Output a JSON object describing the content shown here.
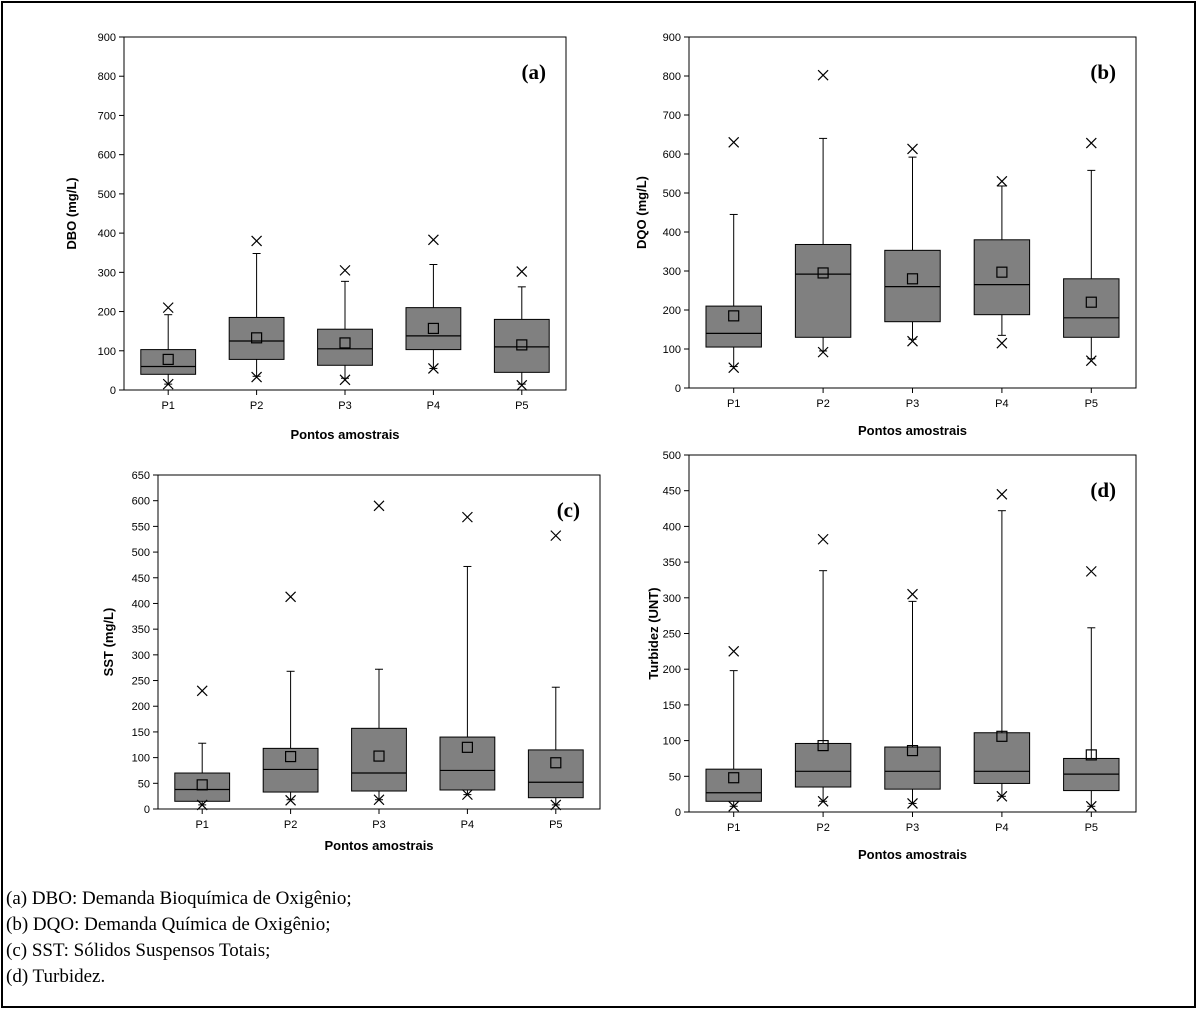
{
  "chart_data": [
    {
      "type": "boxplot",
      "panel_label": "(a)",
      "xlabel": "Pontos amostrais",
      "ylabel": "DBO (mg/L)",
      "ylim": [
        0,
        900
      ],
      "yticks": [
        0,
        100,
        200,
        300,
        400,
        500,
        600,
        700,
        800,
        900
      ],
      "categories": [
        "P1",
        "P2",
        "P3",
        "P4",
        "P5"
      ],
      "boxes": [
        {
          "whisker_low": 15,
          "q1": 40,
          "median": 60,
          "q3": 103,
          "whisker_high": 192,
          "mean": 78,
          "min": 15,
          "max": 210
        },
        {
          "whisker_low": 35,
          "q1": 78,
          "median": 125,
          "q3": 185,
          "whisker_high": 348,
          "mean": 133,
          "min": 33,
          "max": 380
        },
        {
          "whisker_low": 30,
          "q1": 63,
          "median": 105,
          "q3": 155,
          "whisker_high": 277,
          "mean": 120,
          "min": 26,
          "max": 305
        },
        {
          "whisker_low": 55,
          "q1": 103,
          "median": 138,
          "q3": 210,
          "whisker_high": 320,
          "mean": 157,
          "min": 55,
          "max": 383
        },
        {
          "whisker_low": 15,
          "q1": 45,
          "median": 110,
          "q3": 180,
          "whisker_high": 263,
          "mean": 115,
          "min": 12,
          "max": 302
        }
      ]
    },
    {
      "type": "boxplot",
      "panel_label": "(b)",
      "xlabel": "Pontos amostrais",
      "ylabel": "DQO (mg/L)",
      "ylim": [
        0,
        900
      ],
      "yticks": [
        0,
        100,
        200,
        300,
        400,
        500,
        600,
        700,
        800,
        900
      ],
      "categories": [
        "P1",
        "P2",
        "P3",
        "P4",
        "P5"
      ],
      "boxes": [
        {
          "whisker_low": 55,
          "q1": 105,
          "median": 140,
          "q3": 210,
          "whisker_high": 445,
          "mean": 185,
          "min": 52,
          "max": 630
        },
        {
          "whisker_low": 95,
          "q1": 130,
          "median": 292,
          "q3": 368,
          "whisker_high": 640,
          "mean": 295,
          "min": 92,
          "max": 802
        },
        {
          "whisker_low": 125,
          "q1": 170,
          "median": 260,
          "q3": 353,
          "whisker_high": 592,
          "mean": 280,
          "min": 120,
          "max": 613
        },
        {
          "whisker_low": 135,
          "q1": 188,
          "median": 265,
          "q3": 380,
          "whisker_high": 518,
          "mean": 297,
          "min": 115,
          "max": 530
        },
        {
          "whisker_low": 75,
          "q1": 130,
          "median": 180,
          "q3": 280,
          "whisker_high": 558,
          "mean": 220,
          "min": 70,
          "max": 628
        }
      ]
    },
    {
      "type": "boxplot",
      "panel_label": "(c)",
      "xlabel": "Pontos amostrais",
      "ylabel": "SST (mg/L)",
      "ylim": [
        0,
        650
      ],
      "yticks": [
        0,
        50,
        100,
        150,
        200,
        250,
        300,
        350,
        400,
        450,
        500,
        550,
        600,
        650
      ],
      "categories": [
        "P1",
        "P2",
        "P3",
        "P4",
        "P5"
      ],
      "boxes": [
        {
          "whisker_low": 8,
          "q1": 15,
          "median": 38,
          "q3": 70,
          "whisker_high": 128,
          "mean": 47,
          "min": 8,
          "max": 230
        },
        {
          "whisker_low": 18,
          "q1": 33,
          "median": 77,
          "q3": 118,
          "whisker_high": 268,
          "mean": 102,
          "min": 17,
          "max": 413
        },
        {
          "whisker_low": 18,
          "q1": 35,
          "median": 70,
          "q3": 157,
          "whisker_high": 272,
          "mean": 103,
          "min": 18,
          "max": 590
        },
        {
          "whisker_low": 28,
          "q1": 37,
          "median": 75,
          "q3": 140,
          "whisker_high": 472,
          "mean": 120,
          "min": 28,
          "max": 568
        },
        {
          "whisker_low": 8,
          "q1": 22,
          "median": 52,
          "q3": 115,
          "whisker_high": 237,
          "mean": 90,
          "min": 8,
          "max": 532
        }
      ]
    },
    {
      "type": "boxplot",
      "panel_label": "(d)",
      "xlabel": "Pontos amostrais",
      "ylabel": "Turbidez (UNT)",
      "ylim": [
        0,
        500
      ],
      "yticks": [
        0,
        50,
        100,
        150,
        200,
        250,
        300,
        350,
        400,
        450,
        500
      ],
      "categories": [
        "P1",
        "P2",
        "P3",
        "P4",
        "P5"
      ],
      "boxes": [
        {
          "whisker_low": 8,
          "q1": 15,
          "median": 27,
          "q3": 60,
          "whisker_high": 198,
          "mean": 48,
          "min": 8,
          "max": 225
        },
        {
          "whisker_low": 15,
          "q1": 35,
          "median": 57,
          "q3": 96,
          "whisker_high": 338,
          "mean": 93,
          "min": 15,
          "max": 382
        },
        {
          "whisker_low": 12,
          "q1": 32,
          "median": 57,
          "q3": 91,
          "whisker_high": 295,
          "mean": 86,
          "min": 12,
          "max": 305
        },
        {
          "whisker_low": 22,
          "q1": 40,
          "median": 57,
          "q3": 111,
          "whisker_high": 422,
          "mean": 106,
          "min": 22,
          "max": 445
        },
        {
          "whisker_low": 8,
          "q1": 30,
          "median": 53,
          "q3": 75,
          "whisker_high": 258,
          "mean": 80,
          "min": 8,
          "max": 337
        }
      ]
    }
  ],
  "captions": [
    "(a) DBO: Demanda Bioquímica de Oxigênio;",
    "(b) DQO: Demanda Química de Oxigênio;",
    "(c) SST: Sólidos Suspensos Totais;",
    "(d) Turbidez."
  ],
  "colors": {
    "box_fill": "#808080",
    "line": "#000000",
    "background": "#ffffff"
  }
}
